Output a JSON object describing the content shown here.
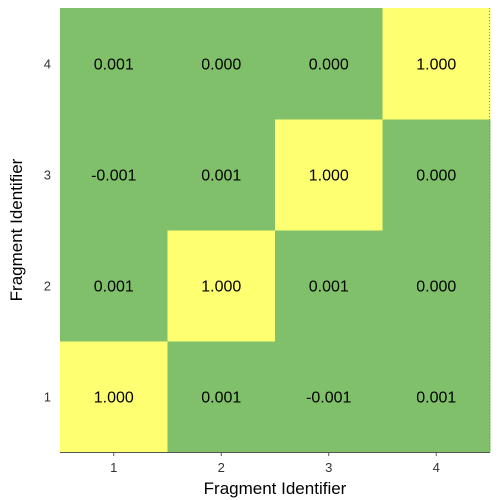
{
  "chart_data": {
    "type": "heatmap",
    "x_categories": [
      "1",
      "2",
      "3",
      "4"
    ],
    "y_categories": [
      "1",
      "2",
      "3",
      "4"
    ],
    "xlabel": "Fragment Identifier",
    "ylabel": "Fragment Identifier",
    "values": [
      [
        1.0,
        0.001,
        -0.001,
        0.001
      ],
      [
        0.001,
        1.0,
        0.001,
        0.0
      ],
      [
        -0.001,
        0.001,
        1.0,
        0.0
      ],
      [
        0.001,
        0.0,
        0.0,
        1.0
      ]
    ],
    "value_labels": [
      [
        "1.000",
        "0.001",
        "-0.001",
        "0.001"
      ],
      [
        "0.001",
        "1.000",
        "0.001",
        "0.000"
      ],
      [
        "-0.001",
        "0.001",
        "1.000",
        "0.000"
      ],
      [
        "0.001",
        "0.000",
        "0.000",
        "1.000"
      ]
    ],
    "colors": {
      "low": "#80c06a",
      "high": "#ffff72"
    },
    "grid": false
  }
}
